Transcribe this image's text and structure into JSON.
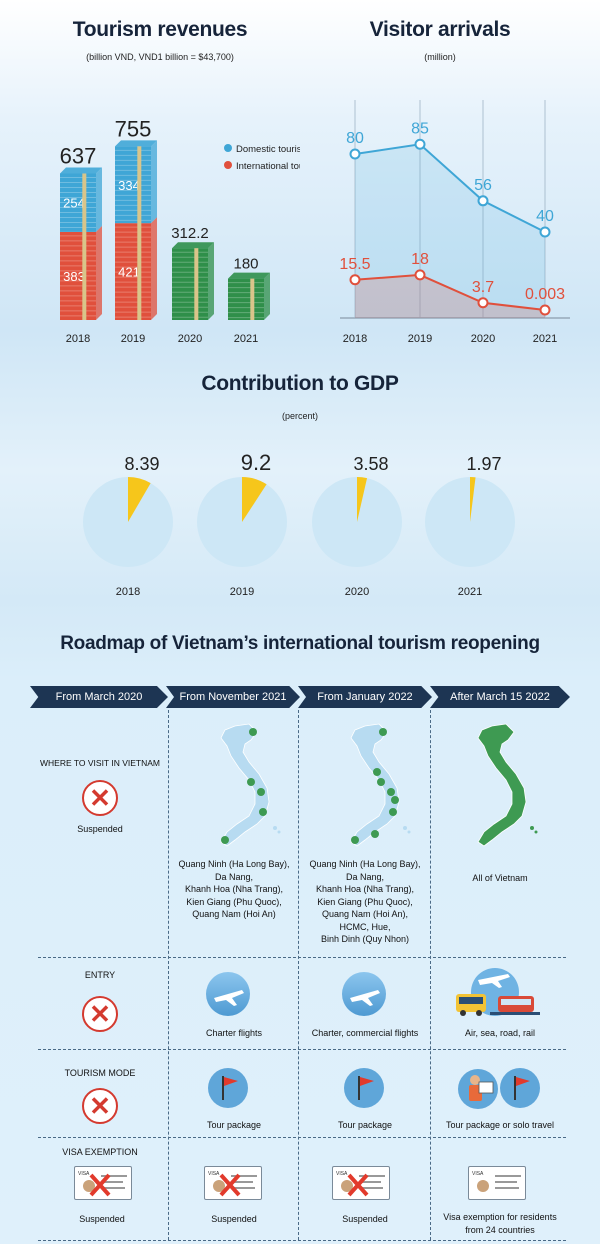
{
  "revenue": {
    "title": "Tourism revenues",
    "subtitle": "(billion VND, VND1 billion = $43,700)",
    "legend": {
      "domestic": "Domestic tourism",
      "international": "International tourism"
    },
    "colors": {
      "domestic": "#3fa6d6",
      "international": "#e0503c",
      "covid": "#2f8f4a"
    }
  },
  "arrivals": {
    "title": "Visitor arrivals",
    "subtitle": "(million)",
    "colors": {
      "total": "#3fa6d6",
      "international": "#e0503c"
    }
  },
  "gdp": {
    "title": "Contribution to GDP",
    "subtitle": "(percent)",
    "colors": {
      "slice": "#f6c61b",
      "pie": "#cde7f6"
    }
  },
  "chart_data": [
    {
      "type": "bar",
      "title": "Tourism revenues",
      "subtitle": "(billion VND, VND1 billion = $43,700)",
      "categories": [
        "2018",
        "2019",
        "2020",
        "2021"
      ],
      "totals": [
        637,
        755,
        312.2,
        180
      ],
      "total_labels": [
        "637",
        "755",
        "312.2",
        "180"
      ],
      "series": [
        {
          "name": "Domestic tourism",
          "values": [
            254,
            334,
            null,
            null
          ],
          "labels": [
            "254",
            "334",
            "",
            ""
          ]
        },
        {
          "name": "International tourism",
          "values": [
            383,
            421,
            null,
            null
          ],
          "labels": [
            "383",
            "421",
            "",
            ""
          ]
        }
      ],
      "legend": "right"
    },
    {
      "type": "line",
      "title": "Visitor arrivals",
      "subtitle": "(million)",
      "categories": [
        "2018",
        "2019",
        "2020",
        "2021"
      ],
      "series": [
        {
          "values": [
            80,
            85,
            56,
            40
          ],
          "labels": [
            "80",
            "85",
            "56",
            "40"
          ]
        },
        {
          "values": [
            15.5,
            18,
            3.7,
            0.003
          ],
          "labels": [
            "15.5",
            "18",
            "3.7",
            "0.003"
          ]
        }
      ]
    },
    {
      "type": "pie",
      "title": "Contribution to GDP",
      "subtitle": "(percent)",
      "categories": [
        "2018",
        "2019",
        "2020",
        "2021"
      ],
      "values": [
        8.39,
        9.2,
        3.58,
        1.97
      ],
      "labels": [
        "8.39",
        "9.2",
        "3.58",
        "1.97"
      ]
    }
  ],
  "roadmap": {
    "title": "Roadmap of Vietnam’s international tourism reopening",
    "phases": [
      "From March 2020",
      "From November 2021",
      "From January 2022",
      "After March 15 2022"
    ],
    "rows": {
      "where": {
        "label": "WHERE TO VISIT IN VIETNAM",
        "cells": [
          "Suspended",
          [
            "Quang Ninh (Ha Long Bay),",
            "Da Nang,",
            "Khanh Hoa (Nha Trang),",
            "Kien Giang (Phu Quoc),",
            "Quang Nam (Hoi An)"
          ],
          [
            "Quang Ninh (Ha Long Bay),",
            "Da Nang,",
            "Khanh Hoa (Nha Trang),",
            "Kien Giang (Phu Quoc),",
            "Quang Nam (Hoi An),",
            "HCMC, Hue,",
            "Binh Dinh (Quy Nhon)"
          ],
          "All of Vietnam"
        ]
      },
      "entry": {
        "label": "ENTRY",
        "cells": [
          "",
          "Charter flights",
          "Charter, commercial flights",
          "Air, sea, road, rail"
        ]
      },
      "mode": {
        "label": "TOURISM MODE",
        "cells": [
          "",
          "Tour package",
          "Tour package",
          "Tour package or solo travel"
        ]
      },
      "visa": {
        "label": "VISA EXEMPTION",
        "cells": [
          "Suspended",
          "Suspended",
          "Suspended",
          [
            "Visa exemption for residents",
            "from 24 countries"
          ]
        ]
      }
    },
    "icons": {
      "suspended": "x-mark-icon",
      "map": "vietnam-map-icon",
      "entry": [
        "airplane-icon",
        "transport-icon"
      ],
      "mode": [
        "flag-icon",
        "tourist-icon"
      ],
      "visa": "visa-card-icon"
    },
    "colors": {
      "header": "#1d3553",
      "x": "#d43a2f",
      "map_light": "#b7dbf1",
      "map_green": "#3e9a52",
      "flag": "#e23a2c"
    }
  }
}
